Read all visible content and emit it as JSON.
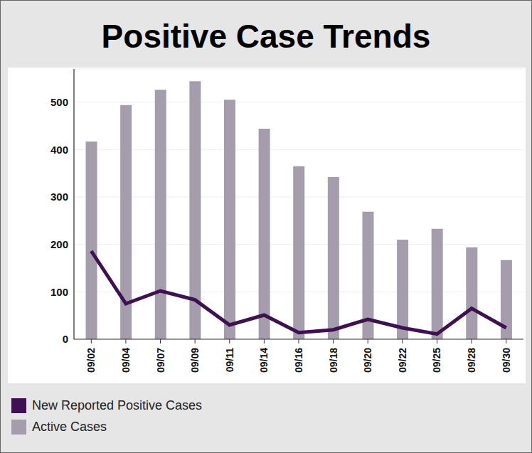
{
  "chart_data": {
    "type": "bar",
    "title": "Positive Case Trends",
    "categories": [
      "09/02",
      "09/04",
      "09/07",
      "09/09",
      "09/11",
      "09/14",
      "09/16",
      "09/18",
      "09/20",
      "09/22",
      "09/25",
      "09/28",
      "09/30"
    ],
    "series": [
      {
        "name": "New Reported Positive Cases",
        "type": "line",
        "color": "#3d1152",
        "values": [
          186,
          75,
          102,
          83,
          30,
          51,
          14,
          20,
          42,
          24,
          11,
          65,
          24
        ]
      },
      {
        "name": "Active Cases",
        "type": "bar",
        "color": "#a59cac",
        "values": [
          417,
          494,
          526,
          544,
          505,
          444,
          365,
          342,
          269,
          210,
          233,
          194,
          167
        ]
      }
    ],
    "ylim": [
      0,
      570
    ],
    "yticks": [
      0,
      100,
      200,
      300,
      400,
      500
    ],
    "grid": true,
    "legend": "bottom"
  }
}
